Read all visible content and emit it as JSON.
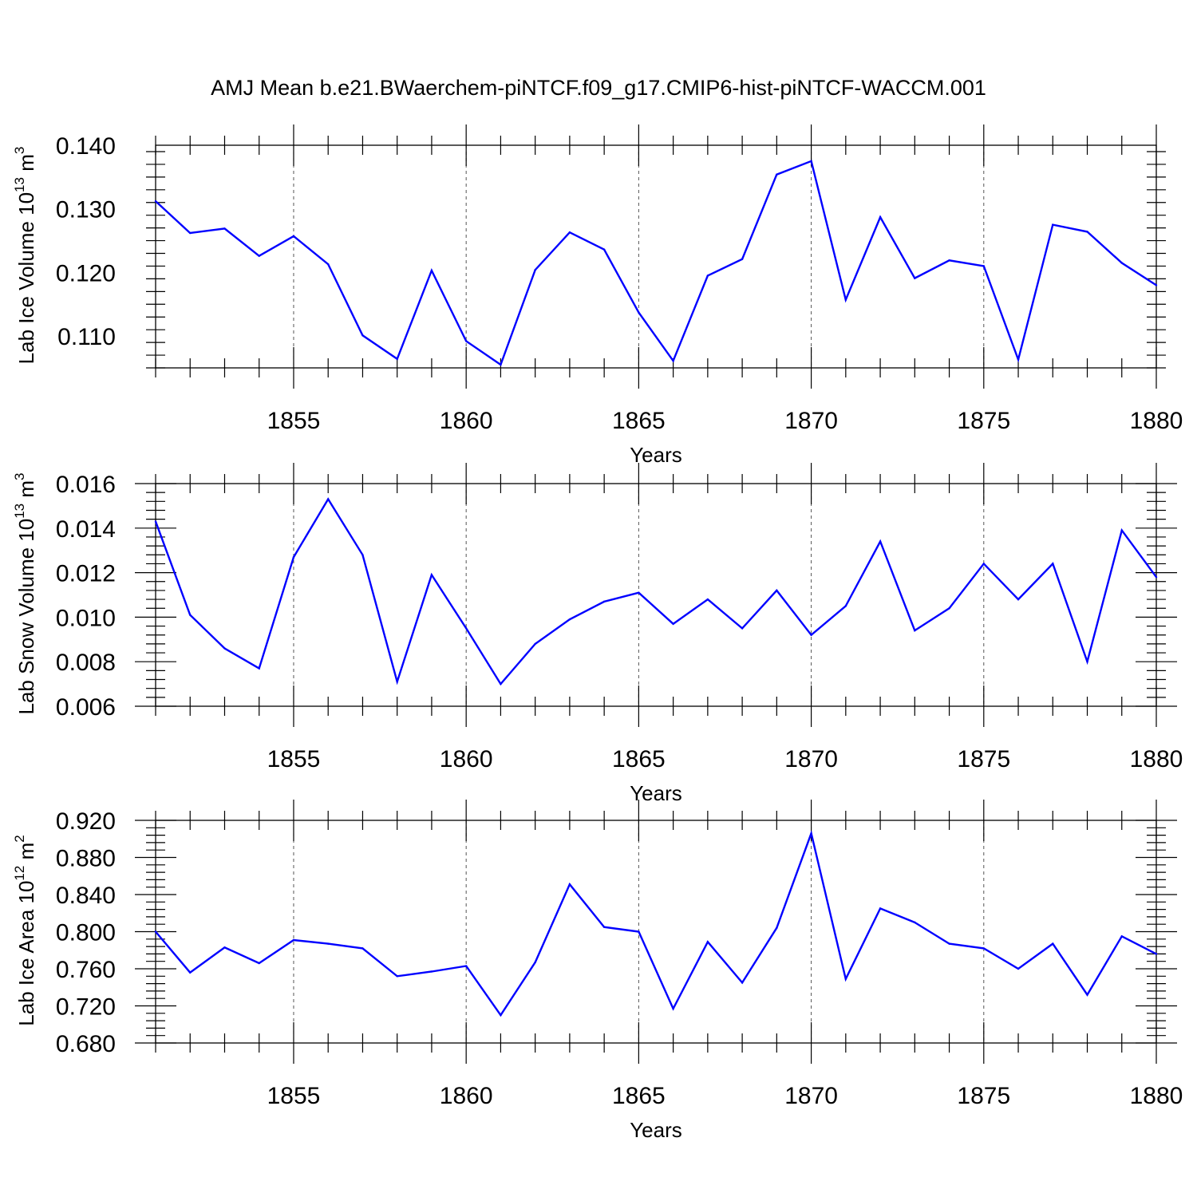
{
  "chart_data": [
    {
      "type": "line",
      "title": "AMJ Mean b.e21.BWaerchem-piNTCF.f09_g17.CMIP6-hist-piNTCF-WACCM.001",
      "ylabel": "Lab Ice Volume 10",
      "ylabel_exp": "13",
      "ylabel_unit": " m",
      "ylabel_unit_exp": "3",
      "xlabel": "Years",
      "xlim": [
        1851,
        1880
      ],
      "ylim": [
        0.105,
        0.14
      ],
      "x_ticks": [
        1855,
        1860,
        1865,
        1870,
        1875,
        1880
      ],
      "x_tick_labels": [
        "1855",
        "1860",
        "1865",
        "1870",
        "1875",
        "1880"
      ],
      "y_ticks": [
        0.11,
        0.12,
        0.13,
        0.14
      ],
      "y_tick_labels": [
        "0.110",
        "0.120",
        "0.130",
        "0.140"
      ],
      "grid": "vertical dashed at major x ticks",
      "series_color": "#0000ff",
      "x": [
        1851,
        1852,
        1853,
        1854,
        1855,
        1856,
        1857,
        1858,
        1859,
        1860,
        1861,
        1862,
        1863,
        1864,
        1865,
        1866,
        1867,
        1868,
        1869,
        1870,
        1871,
        1872,
        1873,
        1874,
        1875,
        1876,
        1877,
        1878,
        1879,
        1880
      ],
      "values": [
        0.1312,
        0.1262,
        0.1269,
        0.1226,
        0.1257,
        0.1213,
        0.1101,
        0.1064,
        0.1203,
        0.1092,
        0.1055,
        0.1204,
        0.1263,
        0.1236,
        0.1137,
        0.1061,
        0.1195,
        0.1221,
        0.1354,
        0.1375,
        0.1157,
        0.1287,
        0.1191,
        0.1219,
        0.121,
        0.1063,
        0.1275,
        0.1264,
        0.1215,
        0.118
      ]
    },
    {
      "type": "line",
      "ylabel": "Lab Snow Volume 10",
      "ylabel_exp": "13",
      "ylabel_unit": " m",
      "ylabel_unit_exp": "3",
      "xlabel": "Years",
      "xlim": [
        1851,
        1880
      ],
      "ylim": [
        0.006,
        0.016
      ],
      "x_ticks": [
        1855,
        1860,
        1865,
        1870,
        1875,
        1880
      ],
      "x_tick_labels": [
        "1855",
        "1860",
        "1865",
        "1870",
        "1875",
        "1880"
      ],
      "y_ticks": [
        0.006,
        0.008,
        0.01,
        0.012,
        0.014,
        0.016
      ],
      "y_tick_labels": [
        "0.006",
        "0.008",
        "0.010",
        "0.012",
        "0.014",
        "0.016"
      ],
      "grid": "vertical dashed at major x ticks",
      "series_color": "#0000ff",
      "x": [
        1851,
        1852,
        1853,
        1854,
        1855,
        1856,
        1857,
        1858,
        1859,
        1860,
        1861,
        1862,
        1863,
        1864,
        1865,
        1866,
        1867,
        1868,
        1869,
        1870,
        1871,
        1872,
        1873,
        1874,
        1875,
        1876,
        1877,
        1878,
        1879,
        1880
      ],
      "values": [
        0.0143,
        0.0101,
        0.0086,
        0.0077,
        0.0127,
        0.0153,
        0.0128,
        0.0071,
        0.0119,
        0.0095,
        0.007,
        0.0088,
        0.0099,
        0.0107,
        0.0111,
        0.0097,
        0.0108,
        0.0095,
        0.0112,
        0.0092,
        0.0105,
        0.0134,
        0.0094,
        0.0104,
        0.0124,
        0.0108,
        0.0124,
        0.008,
        0.0139,
        0.0118
      ]
    },
    {
      "type": "line",
      "ylabel": "Lab Ice Area 10",
      "ylabel_exp": "12",
      "ylabel_unit": " m",
      "ylabel_unit_exp": "2",
      "xlabel": "Years",
      "xlim": [
        1851,
        1880
      ],
      "ylim": [
        0.68,
        0.92
      ],
      "x_ticks": [
        1855,
        1860,
        1865,
        1870,
        1875,
        1880
      ],
      "x_tick_labels": [
        "1855",
        "1860",
        "1865",
        "1870",
        "1875",
        "1880"
      ],
      "y_ticks": [
        0.68,
        0.72,
        0.76,
        0.8,
        0.84,
        0.88,
        0.92
      ],
      "y_tick_labels": [
        "0.680",
        "0.720",
        "0.760",
        "0.800",
        "0.840",
        "0.880",
        "0.920"
      ],
      "grid": "vertical dashed at major x ticks",
      "series_color": "#0000ff",
      "x": [
        1851,
        1852,
        1853,
        1854,
        1855,
        1856,
        1857,
        1858,
        1859,
        1860,
        1861,
        1862,
        1863,
        1864,
        1865,
        1866,
        1867,
        1868,
        1869,
        1870,
        1871,
        1872,
        1873,
        1874,
        1875,
        1876,
        1877,
        1878,
        1879,
        1880
      ],
      "values": [
        0.8,
        0.756,
        0.783,
        0.766,
        0.791,
        0.787,
        0.782,
        0.752,
        0.757,
        0.763,
        0.71,
        0.767,
        0.851,
        0.805,
        0.8,
        0.717,
        0.789,
        0.745,
        0.804,
        0.906,
        0.749,
        0.825,
        0.81,
        0.787,
        0.782,
        0.76,
        0.787,
        0.732,
        0.795,
        0.776
      ]
    }
  ]
}
